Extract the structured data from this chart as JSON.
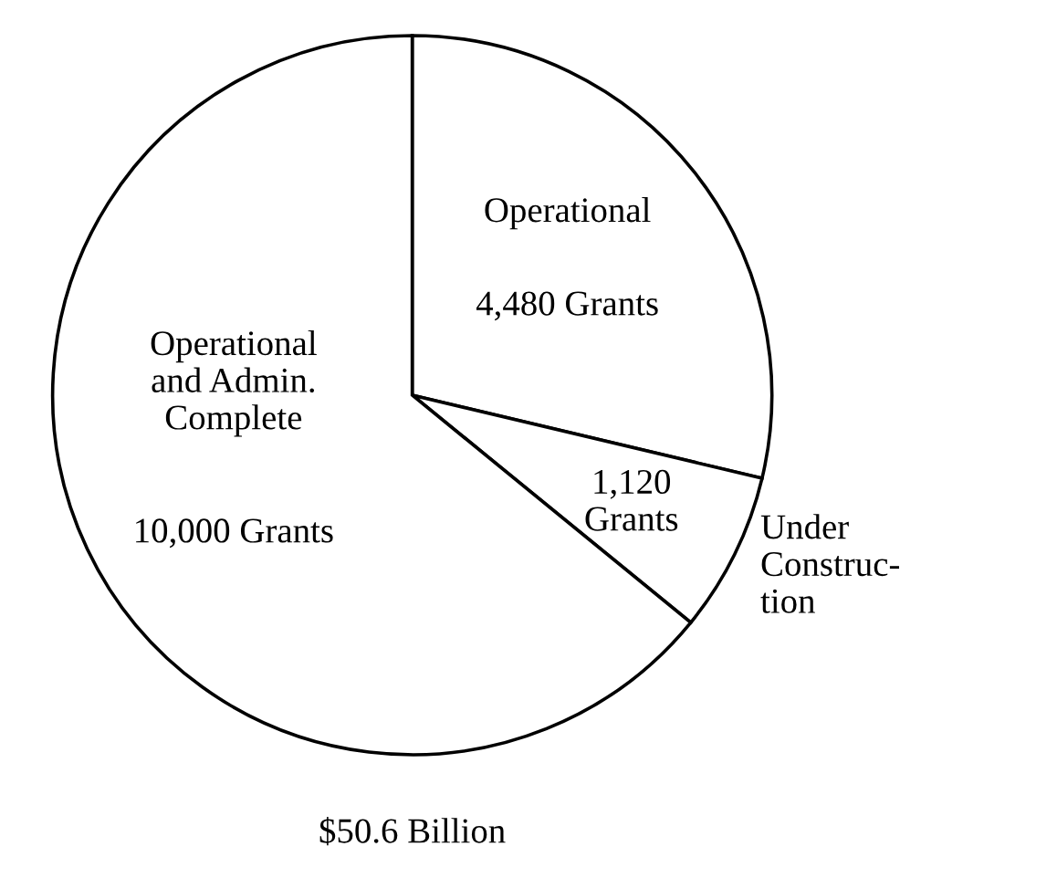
{
  "chart_data": {
    "type": "pie",
    "categories": [
      "Operational",
      "Under\nConstruc-\ntion",
      "Operational\nand Admin.\nComplete"
    ],
    "values": [
      4480,
      1120,
      10000
    ],
    "value_labels": [
      "4,480 Grants",
      "1,120\nGrants",
      "10,000 Grants"
    ],
    "colors": [
      "#ffffff",
      "#ffffff",
      "#ffffff"
    ],
    "annotations": [
      "$50.6 Billion"
    ]
  }
}
